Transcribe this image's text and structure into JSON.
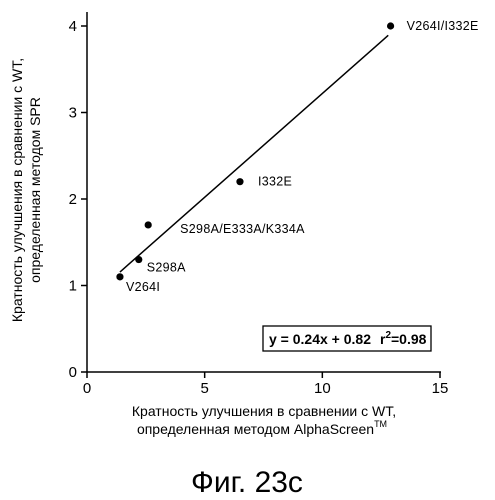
{
  "chart_data": {
    "type": "scatter",
    "xlabel_lines": [
      "Кратность улучшения в сравнении с WT,",
      "определенная методом AlphaScreen"
    ],
    "xlabel_tm": "TM",
    "ylabel_lines": [
      "Кратность улучшения в сравнении с WT,",
      "определенная методом SPR"
    ],
    "x_ticks": [
      "0",
      "5",
      "10",
      "15"
    ],
    "y_ticks": [
      "0",
      "1",
      "2",
      "3",
      "4"
    ],
    "xlim": [
      0,
      15
    ],
    "ylim": [
      0,
      4.2
    ],
    "points": [
      {
        "label": "V264I",
        "x": 1.4,
        "y": 1.1
      },
      {
        "label": "S298A",
        "x": 2.2,
        "y": 1.3
      },
      {
        "label": "S298A/E333A/K334A",
        "x": 2.6,
        "y": 1.7
      },
      {
        "label": "I332E",
        "x": 6.5,
        "y": 2.2
      },
      {
        "label": "V264I/I332E",
        "x": 12.9,
        "y": 4.0
      }
    ],
    "fit_line": {
      "slope": 0.24,
      "intercept": 0.82,
      "x_start": 1.4,
      "x_end": 12.8
    },
    "equation": {
      "eq": "y = 0.24x + 0.82",
      "r2_prefix": "r",
      "r2_sup": "2",
      "r2_value": "=0.98"
    },
    "grid": false
  },
  "caption": "Фиг. 23c"
}
